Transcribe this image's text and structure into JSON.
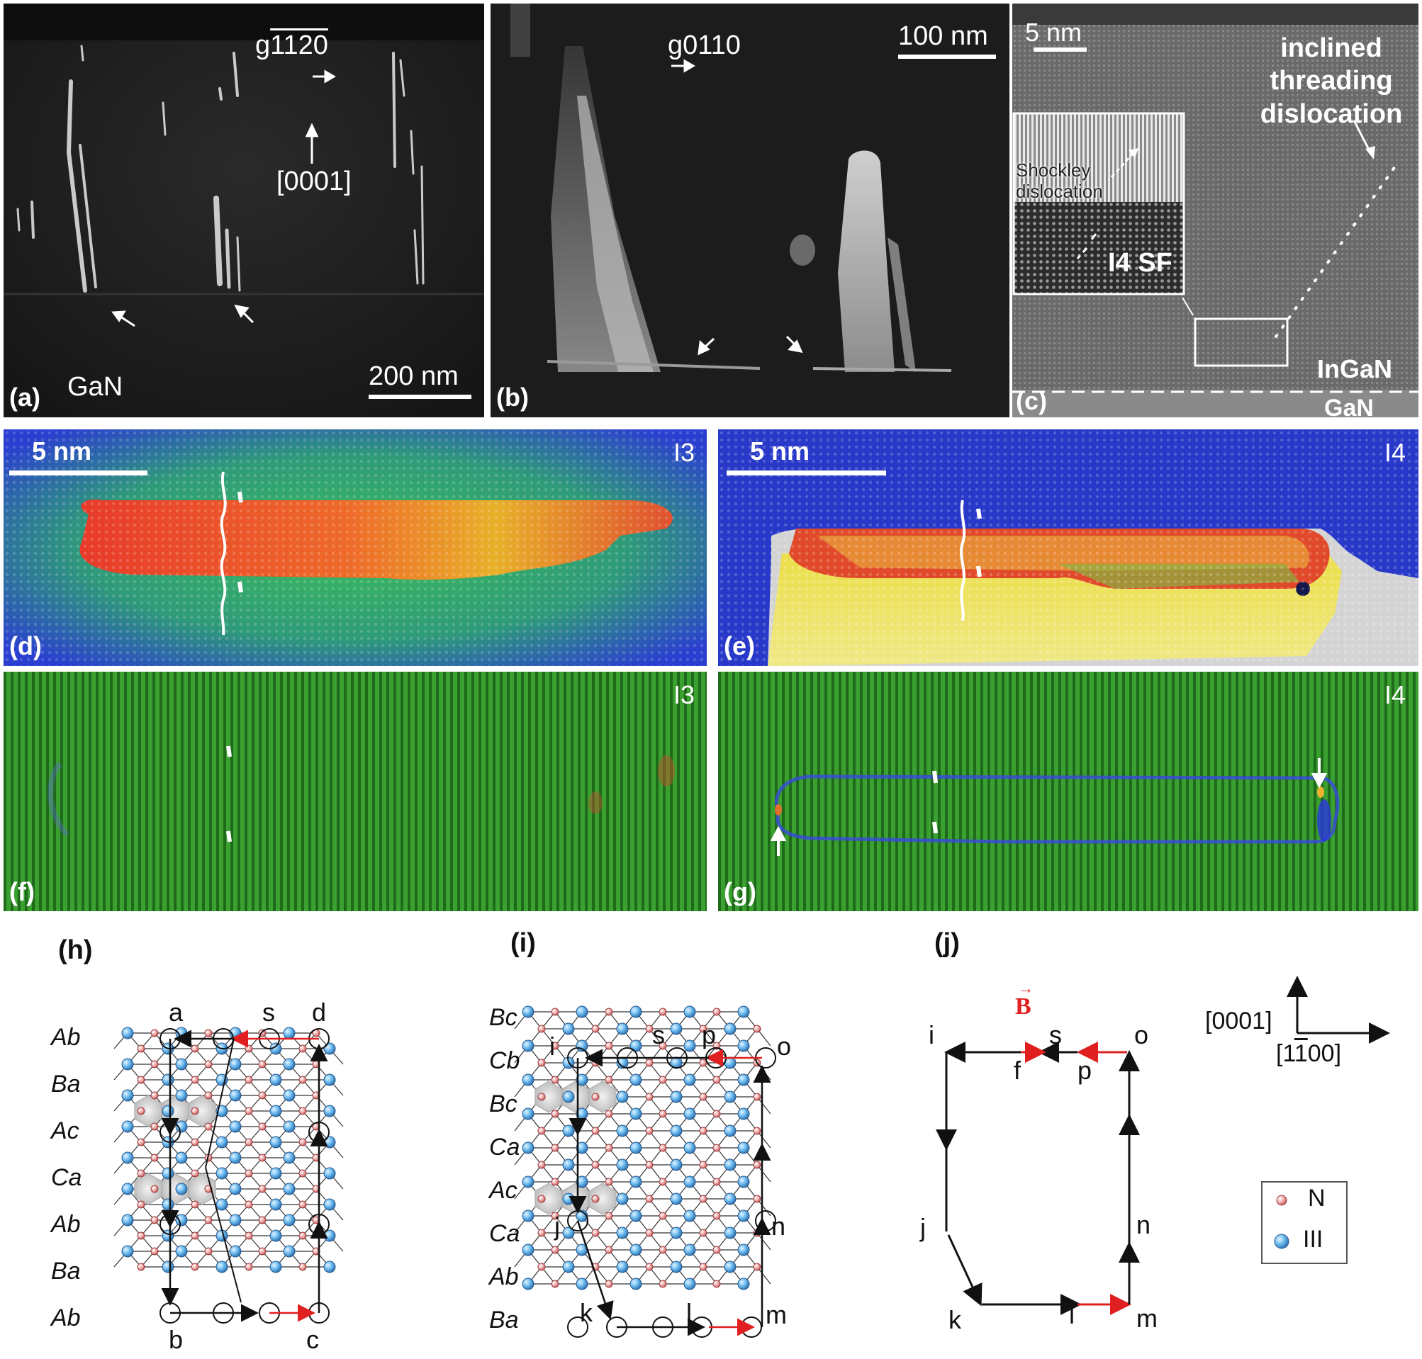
{
  "panel_a": {
    "label": "(a)",
    "g_vector": "g1̅1̅120",
    "g_display": "g",
    "g_digits": "1120",
    "direction": "[0001]",
    "material": "GaN",
    "scale": "200 nm"
  },
  "panel_b": {
    "label": "(b)",
    "g_display": "g",
    "g_digits": "0110",
    "scale": "100 nm"
  },
  "panel_c": {
    "label": "(c)",
    "scale": "5 nm",
    "annotation": "inclined\nthreading\ndislocation",
    "annot1": "inclined",
    "annot2": "threading",
    "annot3": "dislocation",
    "inset1": "Shockley",
    "inset2": "dislocation",
    "inset_sf": "I4 SF",
    "top_layer": "InGaN",
    "bottom_layer": "GaN"
  },
  "panel_d": {
    "label": "(d)",
    "scale": "5 nm",
    "tag": "I3"
  },
  "panel_e": {
    "label": "(e)",
    "scale": "5 nm",
    "tag": "I4"
  },
  "panel_f": {
    "label": "(f)",
    "tag": "I3"
  },
  "panel_g": {
    "label": "(g)",
    "tag": "I4"
  },
  "panel_h": {
    "label": "(h)",
    "stacking": [
      "Ab",
      "Ba",
      "Ac",
      "Ca",
      "Ab",
      "Ba",
      "Ab"
    ],
    "points": [
      "a",
      "s",
      "d",
      "b",
      "c"
    ]
  },
  "panel_i": {
    "label": "(i)",
    "stacking": [
      "Bc",
      "Cb",
      "Bc",
      "Ca",
      "Ac",
      "Ca",
      "Ab",
      "Ba"
    ],
    "points": [
      "i",
      "s",
      "p",
      "o",
      "j",
      "n",
      "k",
      "l",
      "m"
    ]
  },
  "panel_j": {
    "label": "(j)",
    "burgers": "B",
    "points": [
      "i",
      "s",
      "o",
      "f",
      "p",
      "j",
      "n",
      "k",
      "l",
      "m"
    ],
    "axis_up": "[0001]",
    "axis_right": "[1100]"
  },
  "legend": {
    "n_label": "N",
    "iii_label": "III"
  },
  "colors": {
    "n_atom": "#e8a0a0",
    "iii_atom": "#66b3ee",
    "burgers": "#e02020"
  }
}
